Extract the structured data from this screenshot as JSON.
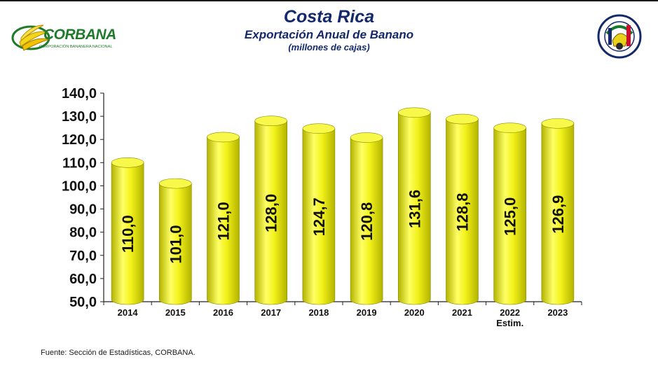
{
  "header": {
    "title": "Costa Rica",
    "subtitle": "Exportación Anual de Banano",
    "unit": "(millones de cajas)"
  },
  "logo": {
    "brand": "CORBANA",
    "tagline": "CORPORACIÓN BANANERA NACIONAL"
  },
  "seal": {
    "ring_text": "BANANO DE COSTA RICA",
    "bottom_text": "PURA VIDA"
  },
  "source": "Fuente: Sección de Estadísticas, CORBANA.",
  "colors": {
    "title": "#14296b",
    "bar_fill": "#f2f21a",
    "bar_shade": "#b3b300",
    "brand_green": "#1f7a2a"
  },
  "chart_data": {
    "type": "bar",
    "categories": [
      "2014",
      "2015",
      "2016",
      "2017",
      "2018",
      "2019",
      "2020",
      "2021",
      "2022",
      "2023"
    ],
    "category_sublabels": [
      "",
      "",
      "",
      "",
      "",
      "",
      "",
      "",
      "Estim.",
      ""
    ],
    "values": [
      110.0,
      101.0,
      121.0,
      128.0,
      124.7,
      120.8,
      131.6,
      128.8,
      125.0,
      126.9
    ],
    "value_labels": [
      "110,0",
      "101,0",
      "121,0",
      "128,0",
      "124,7",
      "120,8",
      "131,6",
      "128,8",
      "125,0",
      "126,9"
    ],
    "ylim": [
      50,
      140
    ],
    "yticks": [
      50,
      60,
      70,
      80,
      90,
      100,
      110,
      120,
      130,
      140
    ],
    "ytick_labels": [
      "50,0",
      "60,0",
      "70,0",
      "80,0",
      "90,0",
      "100,0",
      "110,0",
      "120,0",
      "130,0",
      "140,0"
    ],
    "style": "3d-cylinder",
    "grid": false,
    "legend": "none",
    "data_label_orientation": "vertical"
  }
}
